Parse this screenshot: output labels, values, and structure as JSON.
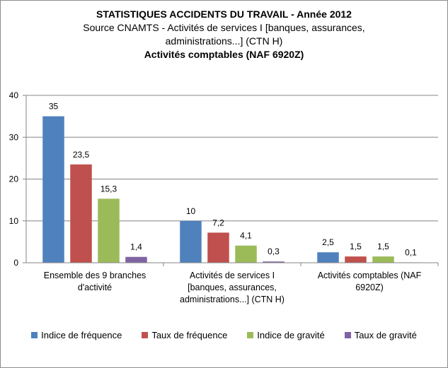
{
  "chart_data": {
    "type": "bar",
    "title": "STATISTIQUES ACCIDENTS DU TRAVAIL - Année 2012",
    "subtitle_lines": [
      "Source CNAMTS - Activités de services I [banques, assurances,",
      "administrations...] (CTN H)"
    ],
    "subtitle_bold": "Activités comptables (NAF 6920Z)",
    "categories": [
      [
        "Ensemble des 9 branches",
        "d'activité"
      ],
      [
        "Activités de services I",
        "[banques, assurances,",
        "administrations...] (CTN H)"
      ],
      [
        "Activités comptables (NAF",
        "6920Z)"
      ]
    ],
    "series": [
      {
        "name": "Indice de fréquence",
        "color": "#4f81bd",
        "values": [
          35,
          10,
          2.5
        ],
        "labels": [
          "35",
          "10",
          "2,5"
        ]
      },
      {
        "name": "Taux de fréquence",
        "color": "#c0504d",
        "values": [
          23.5,
          7.2,
          1.5
        ],
        "labels": [
          "23,5",
          "7,2",
          "1,5"
        ]
      },
      {
        "name": "Indice de gravité",
        "color": "#9bbb59",
        "values": [
          15.3,
          4.1,
          1.5
        ],
        "labels": [
          "15,3",
          "4,1",
          "1,5"
        ]
      },
      {
        "name": "Taux de gravité",
        "color": "#8064a2",
        "values": [
          1.4,
          0.3,
          0.1
        ],
        "labels": [
          "1,4",
          "0,3",
          "0,1"
        ]
      }
    ],
    "ylim": [
      0,
      40
    ],
    "yticks": [
      0,
      10,
      20,
      30,
      40
    ],
    "grid": true,
    "legend": "bottom"
  }
}
